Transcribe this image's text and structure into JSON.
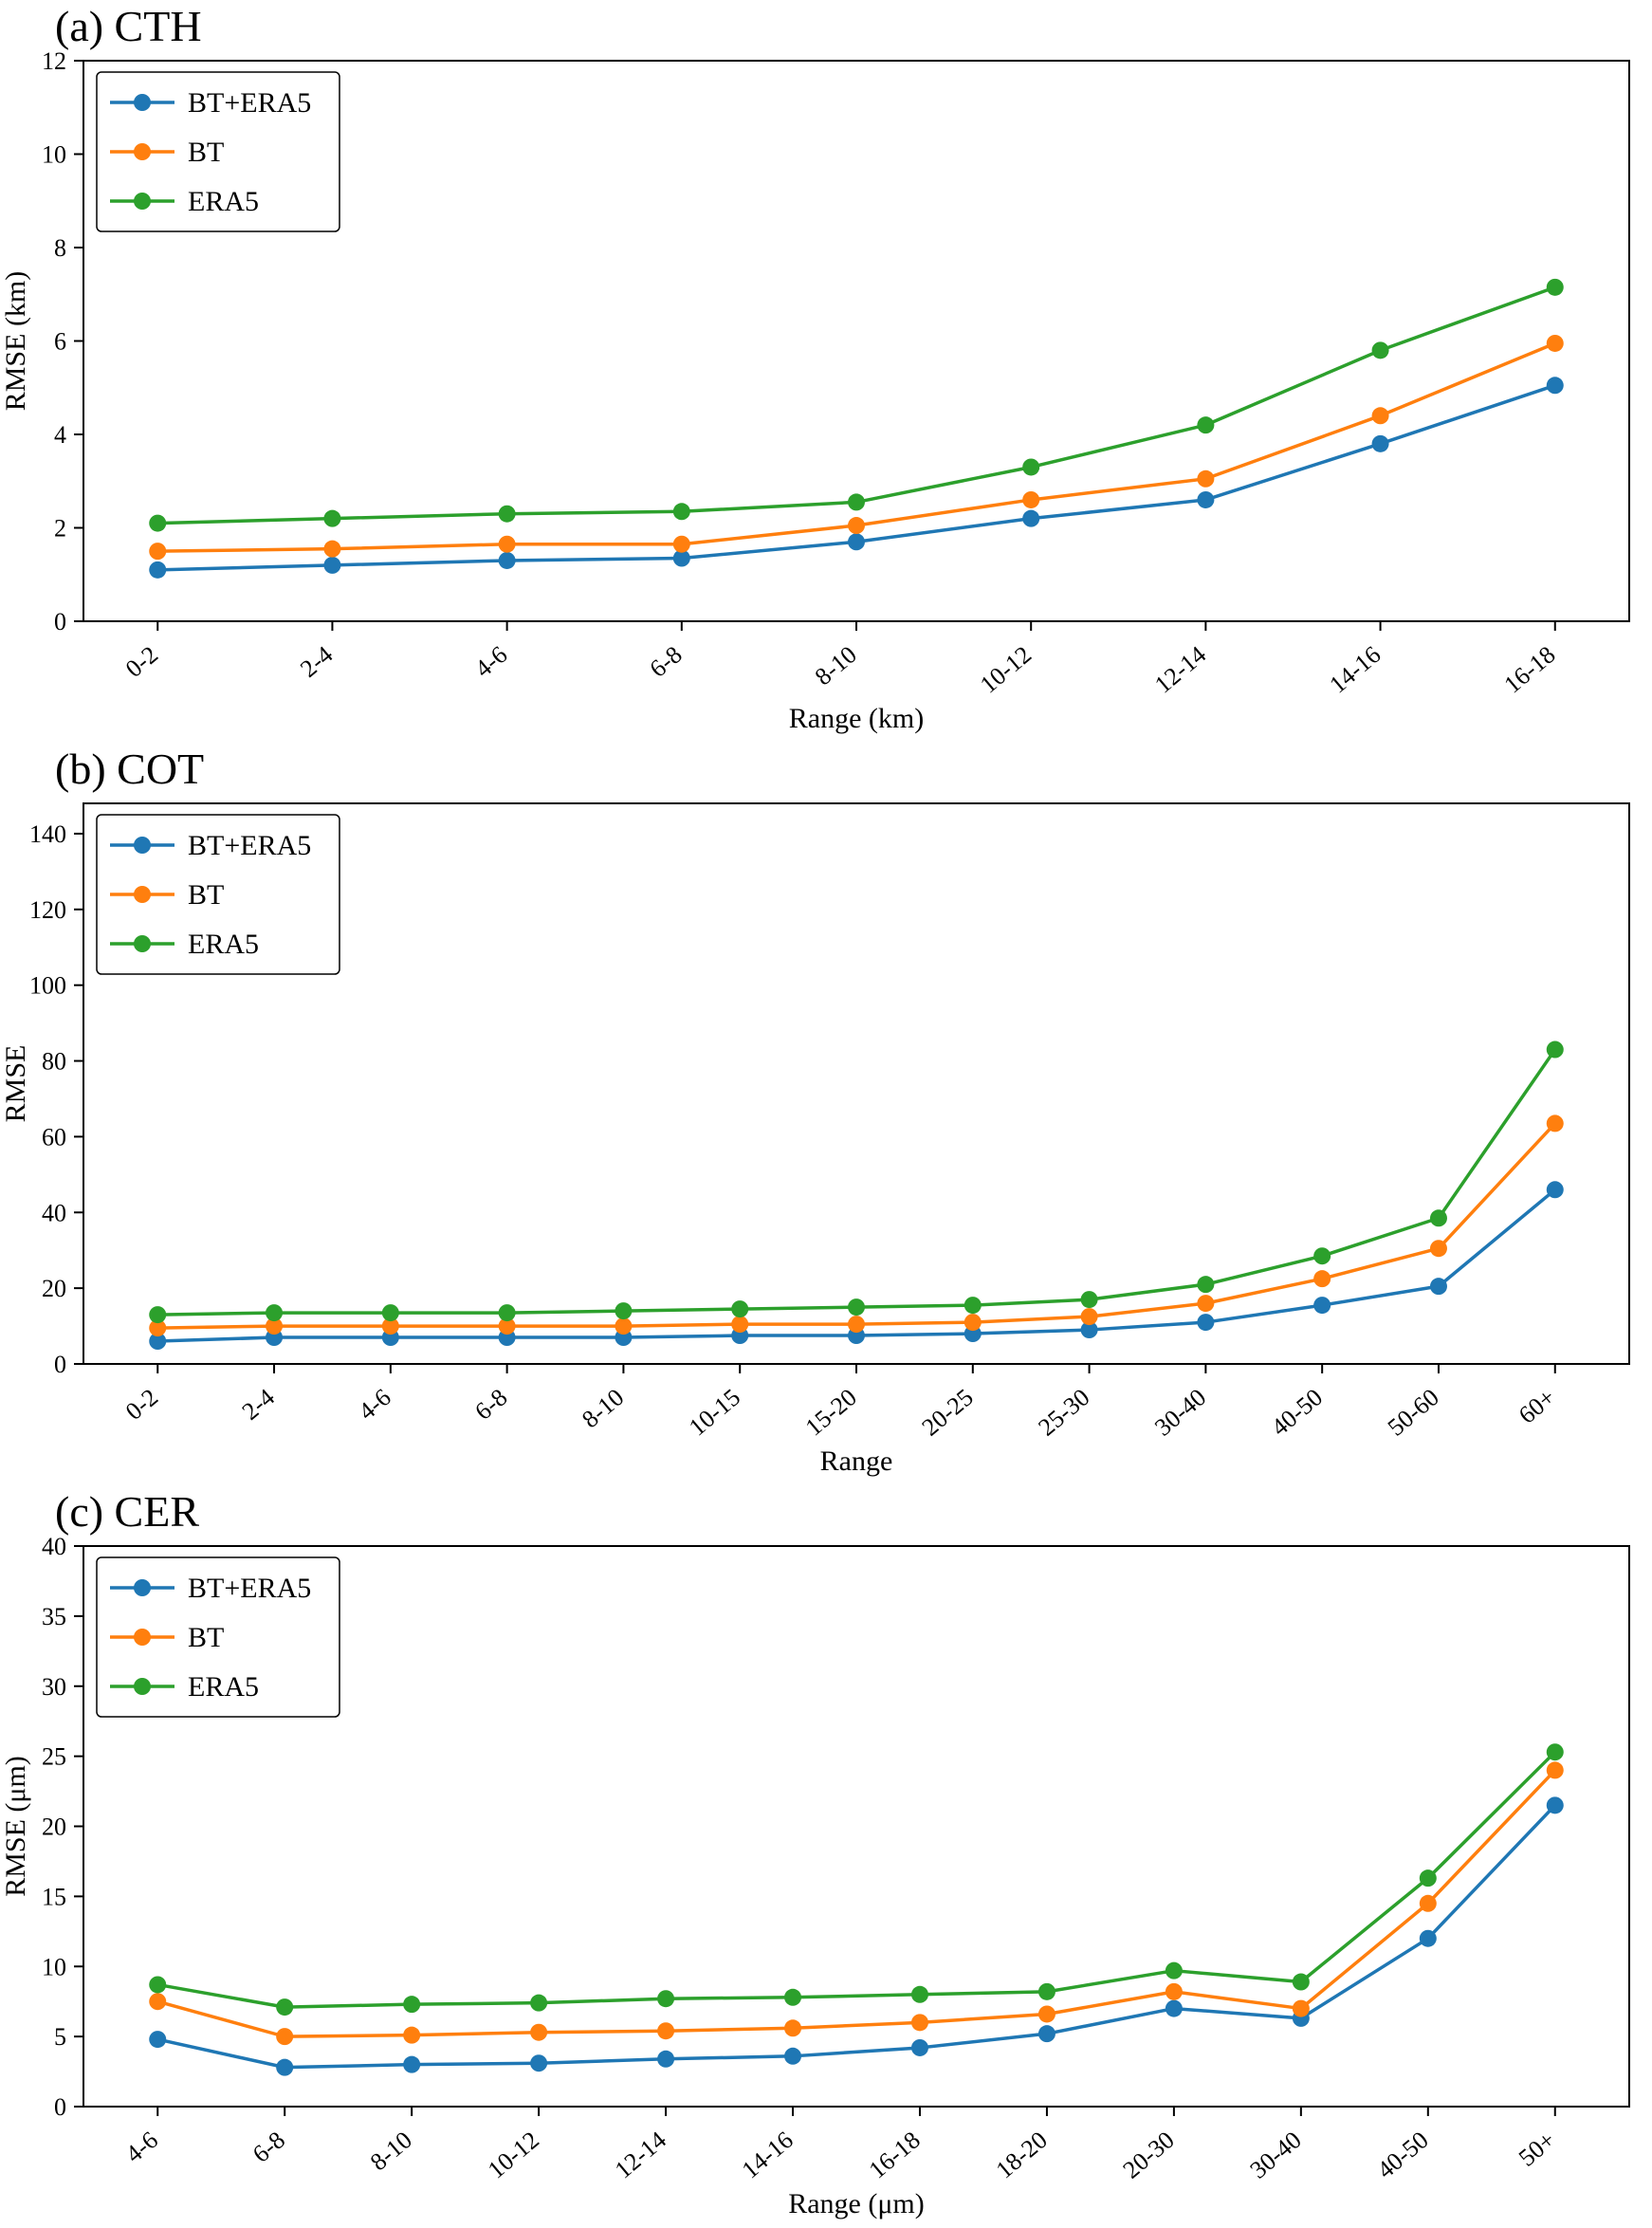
{
  "page": {
    "background": "#ffffff"
  },
  "colors": {
    "bt_era5": "#1f77b4",
    "bt": "#ff7f0e",
    "era5": "#2ca02c"
  },
  "chart_data": [
    {
      "type": "line",
      "title": "(a) CTH",
      "xlabel": "Range (km)",
      "ylabel": "RMSE (km)",
      "ylim": [
        0,
        12
      ],
      "yticks": [
        0,
        2,
        4,
        6,
        8,
        10,
        12
      ],
      "grid": false,
      "legend_position": "upper-left",
      "legend": [
        "BT+ERA5",
        "BT",
        "ERA5"
      ],
      "categories": [
        "0-2",
        "2-4",
        "4-6",
        "6-8",
        "8-10",
        "10-12",
        "12-14",
        "14-16",
        "16-18"
      ],
      "series": [
        {
          "name": "BT+ERA5",
          "color": "#1f77b4",
          "values": [
            1.1,
            1.2,
            1.3,
            1.35,
            1.7,
            2.2,
            2.6,
            3.8,
            5.05
          ]
        },
        {
          "name": "BT",
          "color": "#ff7f0e",
          "values": [
            1.5,
            1.55,
            1.65,
            1.65,
            2.05,
            2.6,
            3.05,
            4.4,
            5.95
          ]
        },
        {
          "name": "ERA5",
          "color": "#2ca02c",
          "values": [
            2.1,
            2.2,
            2.3,
            2.35,
            2.55,
            3.3,
            4.2,
            5.8,
            7.15
          ]
        }
      ]
    },
    {
      "type": "line",
      "title": "(b) COT",
      "xlabel": "Range",
      "ylabel": "RMSE",
      "ylim": [
        0,
        148
      ],
      "yticks": [
        0,
        20,
        40,
        60,
        80,
        100,
        120,
        140
      ],
      "grid": false,
      "legend_position": "upper-left",
      "legend": [
        "BT+ERA5",
        "BT",
        "ERA5"
      ],
      "categories": [
        "0-2",
        "2-4",
        "4-6",
        "6-8",
        "8-10",
        "10-15",
        "15-20",
        "20-25",
        "25-30",
        "30-40",
        "40-50",
        "50-60",
        "60+"
      ],
      "series": [
        {
          "name": "BT+ERA5",
          "color": "#1f77b4",
          "values": [
            6,
            7,
            7,
            7,
            7,
            7.5,
            7.5,
            8,
            9,
            11,
            15.5,
            20.5,
            46
          ]
        },
        {
          "name": "BT",
          "color": "#ff7f0e",
          "values": [
            9.5,
            10,
            10,
            10,
            10,
            10.5,
            10.5,
            11,
            12.5,
            16,
            22.5,
            30.5,
            63.5
          ]
        },
        {
          "name": "ERA5",
          "color": "#2ca02c",
          "values": [
            13,
            13.5,
            13.5,
            13.5,
            14,
            14.5,
            15,
            15.5,
            17,
            21,
            28.5,
            38.5,
            83
          ]
        }
      ]
    },
    {
      "type": "line",
      "title": "(c) CER",
      "xlabel": "Range (μm)",
      "ylabel": "RMSE (μm)",
      "ylim": [
        0,
        40
      ],
      "yticks": [
        0,
        5,
        10,
        15,
        20,
        25,
        30,
        35,
        40
      ],
      "grid": false,
      "legend_position": "upper-left",
      "legend": [
        "BT+ERA5",
        "BT",
        "ERA5"
      ],
      "categories": [
        "4-6",
        "6-8",
        "8-10",
        "10-12",
        "12-14",
        "14-16",
        "16-18",
        "18-20",
        "20-30",
        "30-40",
        "40-50",
        "50+"
      ],
      "series": [
        {
          "name": "BT+ERA5",
          "color": "#1f77b4",
          "values": [
            4.8,
            2.8,
            3.0,
            3.1,
            3.4,
            3.6,
            4.2,
            5.2,
            7.0,
            6.3,
            12.0,
            21.5
          ]
        },
        {
          "name": "BT",
          "color": "#ff7f0e",
          "values": [
            7.5,
            5.0,
            5.1,
            5.3,
            5.4,
            5.6,
            6.0,
            6.6,
            8.2,
            7.0,
            14.5,
            24.0
          ]
        },
        {
          "name": "ERA5",
          "color": "#2ca02c",
          "values": [
            8.7,
            7.1,
            7.3,
            7.4,
            7.7,
            7.8,
            8.0,
            8.2,
            9.7,
            8.9,
            16.3,
            25.3
          ]
        }
      ]
    }
  ]
}
